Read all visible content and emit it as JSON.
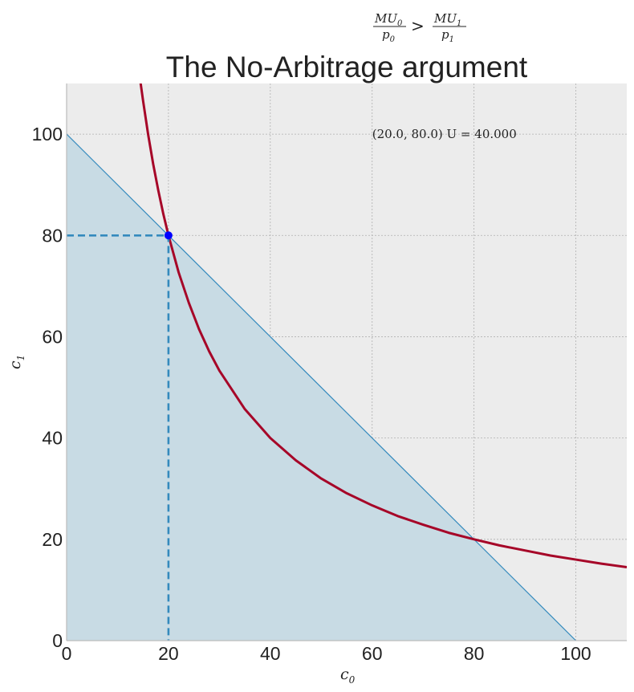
{
  "chart_data": {
    "type": "line",
    "title": "The No-Arbitrage argument",
    "header_formula": {
      "lhs_num": "MU",
      "lhs_num_sub": "0",
      "lhs_den": "p",
      "lhs_den_sub": "0",
      "op": ">",
      "rhs_num": "MU",
      "rhs_num_sub": "1",
      "rhs_den": "p",
      "rhs_den_sub": "1"
    },
    "xlabel": "c",
    "xlabel_sub": "0",
    "ylabel": "c",
    "ylabel_sub": "1",
    "xlim": [
      0,
      110
    ],
    "ylim": [
      0,
      110
    ],
    "xticks": [
      0,
      20,
      40,
      60,
      80,
      100
    ],
    "yticks": [
      0,
      20,
      40,
      60,
      80,
      100
    ],
    "xtick_labels": [
      "0",
      "20",
      "40",
      "60",
      "80",
      "100"
    ],
    "ytick_labels": [
      "0",
      "20",
      "40",
      "60",
      "80",
      "100"
    ],
    "grid": true,
    "annotation": {
      "text": "(20.0, 80.0)  U = 40.000",
      "x": 60,
      "y": 100
    },
    "series": [
      {
        "kind": "budget_line",
        "x": [
          0,
          100
        ],
        "y": [
          100,
          0
        ],
        "fill_below": true,
        "color": "#348abd"
      },
      {
        "kind": "indifference_curve",
        "x": [
          14.5,
          15,
          16,
          17,
          18,
          19,
          20,
          22,
          24,
          26,
          28,
          30,
          35,
          40,
          45,
          50,
          55,
          60,
          65,
          70,
          75,
          80,
          85,
          90,
          95,
          100,
          105,
          110
        ],
        "y": [
          110.3,
          106.7,
          100.0,
          94.1,
          88.9,
          84.2,
          80.0,
          72.7,
          66.7,
          61.5,
          57.1,
          53.3,
          45.7,
          40.0,
          35.6,
          32.0,
          29.1,
          26.7,
          24.6,
          22.9,
          21.3,
          20.0,
          18.8,
          17.8,
          16.8,
          16.0,
          15.2,
          14.5
        ],
        "color": "#a60628"
      },
      {
        "kind": "reference_lines",
        "x": [
          0,
          20,
          20
        ],
        "y": [
          80,
          80,
          0
        ],
        "dashed": true,
        "color": "#348abd"
      },
      {
        "kind": "point",
        "x": [
          20
        ],
        "y": [
          80
        ],
        "color": "#0000ff"
      }
    ],
    "colors": {
      "plot_background": "#ececec",
      "fill": "#c8dbe4",
      "grid": "#b0b0b0",
      "axes": "#bcbcbc"
    }
  }
}
